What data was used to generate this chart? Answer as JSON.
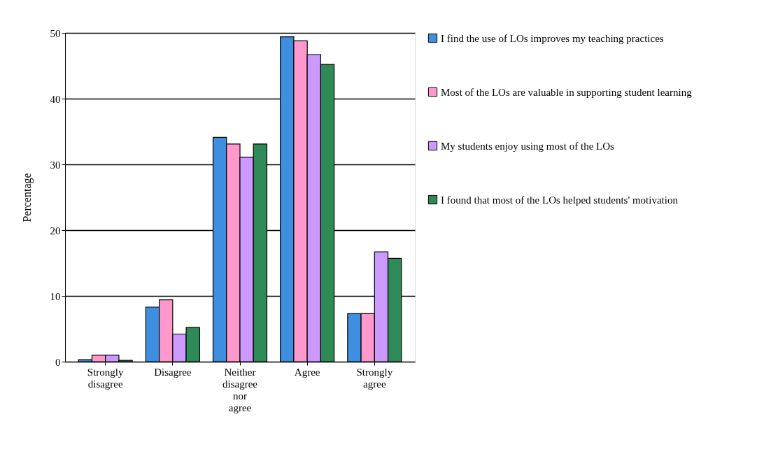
{
  "chart_data": {
    "type": "bar",
    "ylabel": "Percentage",
    "categories": [
      "Strongly disagree",
      "Disagree",
      "Neither disagree nor agree",
      "Agree",
      "Strongly agree"
    ],
    "series": [
      {
        "name": "I find the use of LOs improves my teaching practices",
        "color": "#3f8fe0",
        "values": [
          0.3,
          8.3,
          34.1,
          49.4,
          7.3
        ]
      },
      {
        "name": "Most of the LOs are valuable in supporting student learning",
        "color": "#ff99cc",
        "values": [
          1.0,
          9.4,
          33.1,
          48.8,
          7.3
        ]
      },
      {
        "name": "My students enjoy using most of the LOs",
        "color": "#cc99ff",
        "values": [
          1.0,
          4.2,
          31.1,
          46.7,
          16.7
        ]
      },
      {
        "name": "I found that most of the LOs helped students' motivation",
        "color": "#2e8b57",
        "values": [
          0.2,
          5.2,
          33.1,
          45.2,
          15.7
        ]
      }
    ],
    "ylim": [
      0,
      50
    ],
    "yticks": [
      0,
      10,
      20,
      30,
      40,
      50
    ],
    "grid": "y",
    "legend": "right"
  }
}
